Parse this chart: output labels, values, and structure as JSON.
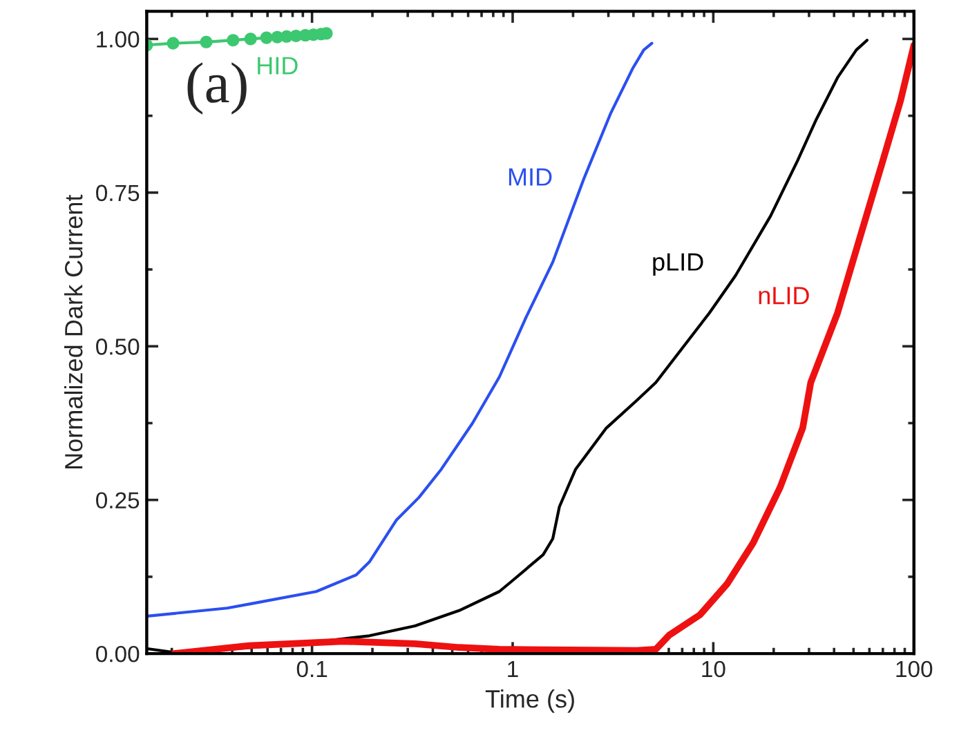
{
  "chart_data": {
    "type": "line",
    "xlabel": "Time (s)",
    "ylabel": "Normalized Dark Current",
    "log": "x",
    "xlim": [
      0.015,
      100
    ],
    "ylim": [
      0,
      1.045
    ],
    "xticks": [
      0.1,
      1,
      10,
      100
    ],
    "yticks": [
      {
        "value": 0,
        "label": "0.00"
      },
      {
        "value": 0.25,
        "label": "0.25"
      },
      {
        "value": 0.5,
        "label": "0.50"
      },
      {
        "value": 0.75,
        "label": "0.75"
      },
      {
        "value": 1.0,
        "label": "1.00"
      }
    ],
    "grid": false,
    "series": [
      {
        "name": "HID",
        "color": "#3cc870",
        "marker": "circle",
        "x": [
          0.015,
          0.0203,
          0.0297,
          0.0404,
          0.0494,
          0.0593,
          0.0671,
          0.0747,
          0.0832,
          0.0926,
          0.1016,
          0.111,
          0.118
        ],
        "values": [
          0.99,
          0.993,
          0.995,
          0.998,
          1.0,
          1.002,
          1.003,
          1.004,
          1.005,
          1.006,
          1.007,
          1.008,
          1.009
        ]
      },
      {
        "name": "MID",
        "color": "#2b4ff0",
        "x": [
          0.0151,
          0.0378,
          0.0514,
          0.105,
          0.166,
          0.193,
          0.263,
          0.341,
          0.441,
          0.631,
          0.858,
          1.166,
          1.585,
          2.26,
          3.07,
          3.98,
          4.5,
          4.94
        ],
        "values": [
          0.061,
          0.074,
          0.082,
          0.101,
          0.128,
          0.149,
          0.217,
          0.254,
          0.3,
          0.375,
          0.45,
          0.547,
          0.637,
          0.772,
          0.878,
          0.953,
          0.982,
          0.993
        ]
      },
      {
        "name": "pLID",
        "color": "#000000",
        "x": [
          0.0151,
          0.0204,
          0.0418,
          0.1,
          0.193,
          0.326,
          0.541,
          0.858,
          1.0,
          1.42,
          1.585,
          1.71,
          2.06,
          2.93,
          4.16,
          5.17,
          9.55,
          12.9,
          19.3,
          26.3,
          32.6,
          41.6,
          51.6,
          58.4
        ],
        "values": [
          0.008,
          0.002,
          0.008,
          0.018,
          0.029,
          0.045,
          0.07,
          0.101,
          0.119,
          0.161,
          0.187,
          0.239,
          0.3,
          0.367,
          0.412,
          0.441,
          0.554,
          0.615,
          0.712,
          0.802,
          0.869,
          0.937,
          0.982,
          0.998
        ]
      },
      {
        "name": "nLID",
        "color": "#ee1111",
        "x": [
          0.0205,
          0.0487,
          0.142,
          0.326,
          0.541,
          0.858,
          4.16,
          5.17,
          6.03,
          8.58,
          11.7,
          15.8,
          21.5,
          27.9,
          30.6,
          41.6,
          53.7,
          70.0,
          85.8,
          100
        ],
        "values": [
          0.0,
          0.013,
          0.02,
          0.016,
          0.01,
          0.007,
          0.005,
          0.007,
          0.03,
          0.063,
          0.113,
          0.18,
          0.27,
          0.367,
          0.441,
          0.554,
          0.676,
          0.802,
          0.9,
          0.99
        ]
      }
    ],
    "annotations": [
      "(a)"
    ]
  }
}
